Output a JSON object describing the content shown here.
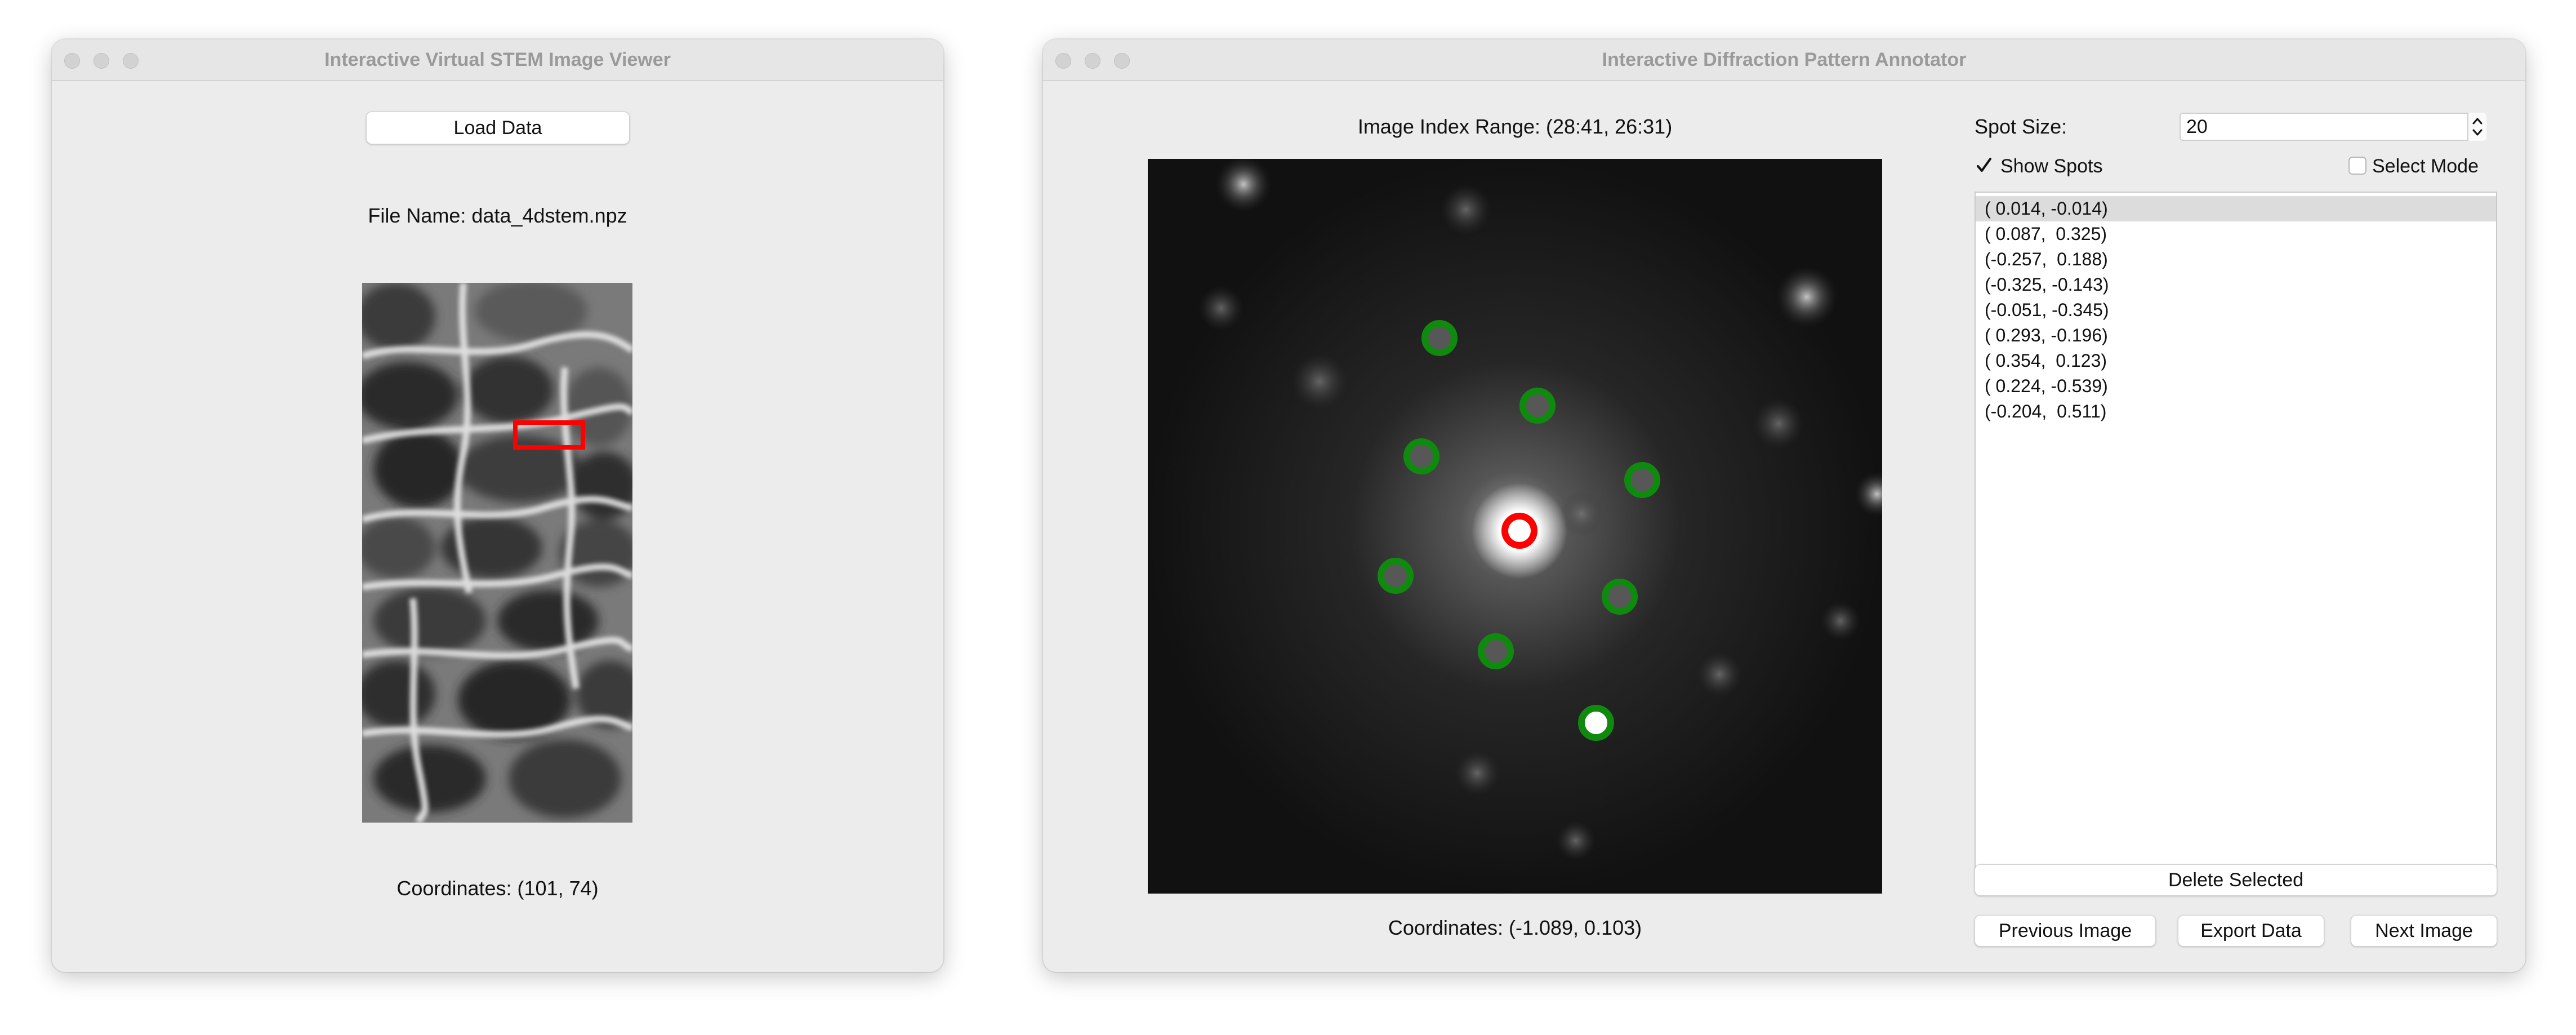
{
  "stem_window": {
    "title": "Interactive Virtual STEM Image Viewer",
    "load_button": "Load Data",
    "file_name": "File Name: data_4dstem.npz",
    "coordinates": "Coordinates: (101, 74)"
  },
  "diffraction_window": {
    "title": "Interactive Diffraction Pattern Annotator",
    "index_range": "Image Index Range: (28:41, 26:31)",
    "coordinates": "Coordinates: (-1.089,  0.103)",
    "spot_size_label": "Spot Size:",
    "spot_size_value": "20",
    "show_spots_label": "Show Spots",
    "show_spots_checked": true,
    "select_mode_label": "Select Mode",
    "select_mode_checked": false,
    "spots": [
      "( 0.014, -0.014)",
      "( 0.087,  0.325)",
      "(-0.257,  0.188)",
      "(-0.325, -0.143)",
      "(-0.051, -0.345)",
      "( 0.293, -0.196)",
      "( 0.354,  0.123)",
      "( 0.224, -0.539)",
      "(-0.204,  0.511)"
    ],
    "selected_index": 0,
    "delete_button": "Delete Selected",
    "previous_button": "Previous Image",
    "export_button": "Export Data",
    "next_button": "Next Image"
  },
  "colors": {
    "selection_box": "#ff0000",
    "green_spot": "#0f8a0f",
    "red_spot": "#ff0000"
  },
  "icons": [
    "checkmark-icon",
    "stepper-arrows-icon"
  ]
}
